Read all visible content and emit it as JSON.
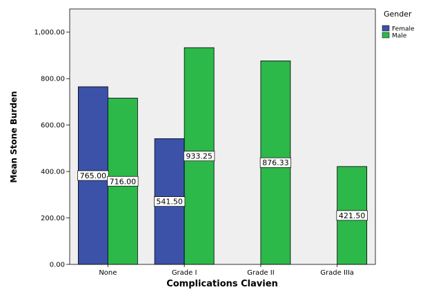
{
  "chart_data": {
    "type": "bar",
    "title": "",
    "xlabel": "Complications Clavien",
    "ylabel": "Mean Stone Burden",
    "categories": [
      "None",
      "Grade I",
      "Grade II",
      "Grade IIIa"
    ],
    "series": [
      {
        "name": "Female",
        "color": "#3b52a8",
        "values": [
          765.0,
          541.5,
          null,
          null
        ]
      },
      {
        "name": "Male",
        "color": "#2db84a",
        "values": [
          716.0,
          933.25,
          876.33,
          421.5
        ]
      }
    ],
    "data_labels": {
      "Female": [
        "765.00",
        "541.50",
        null,
        null
      ],
      "Male": [
        "716.00",
        "933.25",
        "876.33",
        "421.50"
      ]
    },
    "ylim": [
      0,
      1100
    ],
    "yticks": [
      0,
      200,
      400,
      600,
      800,
      1000
    ],
    "ytick_labels": [
      "0.00",
      "200.00",
      "400.00",
      "600.00",
      "800.00",
      "1,000.00"
    ],
    "legend": {
      "title": "Gender",
      "placement": "top-right",
      "entries": [
        "Female",
        "Male"
      ]
    },
    "plot_background": "#efefef",
    "grid": false
  }
}
